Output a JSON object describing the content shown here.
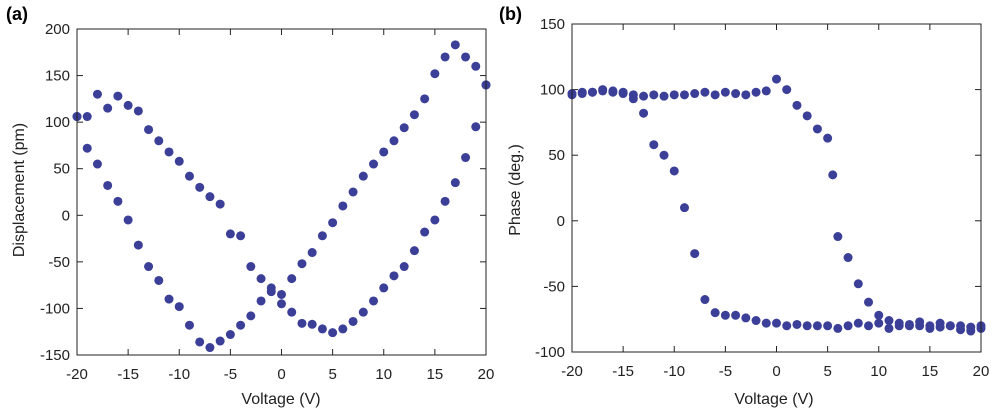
{
  "chart_data": [
    {
      "type": "scatter",
      "panel_label": "(a)",
      "title": "",
      "xlabel": "Voltage (V)",
      "ylabel": "Displacement (pm)",
      "xlim": [
        -20,
        20
      ],
      "ylim": [
        -150,
        200
      ],
      "xticks": [
        -20,
        -15,
        -10,
        -5,
        0,
        5,
        10,
        15,
        20
      ],
      "yticks": [
        -150,
        -100,
        -50,
        0,
        50,
        100,
        150,
        200
      ],
      "marker_color": "#3b3f97",
      "grid": false,
      "series": [
        {
          "x": [
            -20,
            -19,
            -18,
            -17,
            -16,
            -15,
            -14,
            -13,
            -12,
            -11,
            -10,
            -9,
            -8,
            -7,
            -6,
            -5,
            -4,
            -3,
            -2,
            -1,
            0,
            1,
            2,
            3,
            4,
            5,
            6,
            7,
            8,
            9,
            10,
            11,
            12,
            13,
            14,
            15,
            16,
            17,
            18,
            19,
            20
          ],
          "y": [
            106,
            106,
            130,
            115,
            128,
            118,
            112,
            92,
            80,
            68,
            58,
            42,
            30,
            20,
            12,
            -20,
            -22,
            -55,
            -68,
            -78,
            -85,
            -68,
            -52,
            -40,
            -22,
            -8,
            10,
            25,
            42,
            55,
            68,
            80,
            94,
            108,
            125,
            152,
            170,
            183,
            170,
            160,
            140
          ]
        },
        {
          "x": [
            20,
            19,
            18,
            17,
            16,
            15,
            14,
            13,
            12,
            11,
            10,
            9,
            8,
            7,
            6,
            5,
            4,
            3,
            2,
            1,
            0,
            -1,
            -2,
            -3,
            -4,
            -5,
            -6,
            -7,
            -8,
            -9,
            -10,
            -11,
            -12,
            -13,
            -14,
            -15,
            -16,
            -17,
            -18,
            -19,
            -20
          ],
          "y": [
            140,
            95,
            62,
            35,
            15,
            -5,
            -18,
            -38,
            -55,
            -65,
            -78,
            -92,
            -104,
            -114,
            -122,
            -126,
            -122,
            -117,
            -116,
            -104,
            -95,
            -82,
            -92,
            -108,
            -118,
            -128,
            -135,
            -142,
            -136,
            -118,
            -98,
            -90,
            -70,
            -55,
            -32,
            -5,
            15,
            32,
            55,
            72,
            106
          ]
        }
      ]
    },
    {
      "type": "scatter",
      "panel_label": "(b)",
      "title": "",
      "xlabel": "Voltage (V)",
      "ylabel": "Phase (deg.)",
      "xlim": [
        -20,
        20
      ],
      "ylim": [
        -100,
        150
      ],
      "xticks": [
        -20,
        -15,
        -10,
        -5,
        0,
        5,
        10,
        15,
        20
      ],
      "yticks": [
        -100,
        -50,
        0,
        50,
        100,
        150
      ],
      "marker_color": "#3b3f97",
      "grid": false,
      "series": [
        {
          "x": [
            -20,
            -19,
            -18,
            -17,
            -16,
            -15,
            -14,
            -13,
            -12,
            -11,
            -10,
            -9,
            -8,
            -7,
            -6,
            -5,
            -4,
            -3,
            -2,
            -1,
            0,
            1,
            2,
            3,
            4,
            5,
            5.5,
            6,
            7,
            8,
            9,
            10,
            11,
            12,
            13,
            14,
            15,
            16,
            17,
            18,
            19,
            20
          ],
          "y": [
            97,
            98,
            98,
            99,
            98,
            97,
            96,
            95,
            96,
            95,
            96,
            96,
            97,
            98,
            96,
            98,
            97,
            96,
            98,
            99,
            108,
            100,
            88,
            80,
            70,
            63,
            35,
            -12,
            -28,
            -48,
            -62,
            -72,
            -76,
            -78,
            -80,
            -80,
            -82,
            -81,
            -80,
            -83,
            -84,
            -82
          ]
        },
        {
          "x": [
            20,
            19,
            18,
            17,
            16,
            15,
            14,
            13,
            12,
            11,
            10,
            9,
            8,
            7,
            6,
            5,
            4,
            3,
            2,
            1,
            0,
            -1,
            -2,
            -3,
            -4,
            -5,
            -6,
            -7,
            -8,
            -9,
            -10,
            -11,
            -12,
            -13,
            -14,
            -15,
            -16,
            -17,
            -18,
            -19,
            -20
          ],
          "y": [
            -80,
            -81,
            -80,
            -80,
            -78,
            -80,
            -77,
            -79,
            -80,
            -82,
            -78,
            -80,
            -78,
            -80,
            -82,
            -80,
            -80,
            -80,
            -79,
            -80,
            -78,
            -78,
            -76,
            -74,
            -72,
            -72,
            -70,
            -60,
            -25,
            10,
            38,
            50,
            58,
            82,
            93,
            98,
            99,
            100,
            98,
            97,
            96
          ]
        }
      ]
    }
  ]
}
